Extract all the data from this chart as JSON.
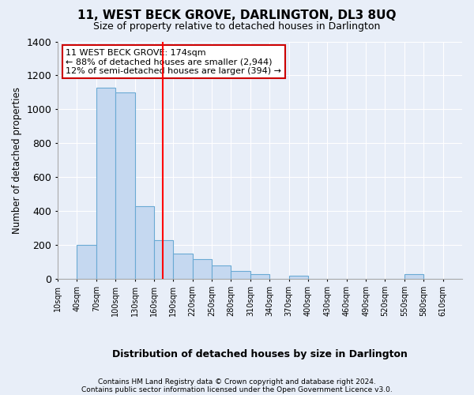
{
  "title": "11, WEST BECK GROVE, DARLINGTON, DL3 8UQ",
  "subtitle": "Size of property relative to detached houses in Darlington",
  "xlabel": "Distribution of detached houses by size in Darlington",
  "ylabel": "Number of detached properties",
  "footnote1": "Contains HM Land Registry data © Crown copyright and database right 2024.",
  "footnote2": "Contains public sector information licensed under the Open Government Licence v3.0.",
  "annotation_line1": "11 WEST BECK GROVE: 174sqm",
  "annotation_line2": "← 88% of detached houses are smaller (2,944)",
  "annotation_line3": "12% of semi-detached houses are larger (394) →",
  "bin_edges": [
    10,
    40,
    70,
    100,
    130,
    160,
    190,
    220,
    250,
    280,
    310,
    340,
    370,
    400,
    430,
    460,
    490,
    520,
    550,
    580,
    610,
    640
  ],
  "values": [
    0,
    200,
    1130,
    1100,
    430,
    230,
    150,
    120,
    80,
    50,
    30,
    0,
    20,
    0,
    0,
    0,
    0,
    0,
    30,
    0,
    0
  ],
  "bar_color": "#c5d8f0",
  "bar_edge_color": "#6aaad4",
  "red_line_x": 174,
  "ylim": [
    0,
    1400
  ],
  "xlim_left": 10,
  "xlim_right": 640,
  "bg_color": "#e8eef8",
  "grid_color": "#ffffff",
  "annotation_box_color": "#ffffff",
  "annotation_box_edge": "#cc0000",
  "tick_labels": [
    "10sqm",
    "40sqm",
    "70sqm",
    "100sqm",
    "130sqm",
    "160sqm",
    "190sqm",
    "220sqm",
    "250sqm",
    "280sqm",
    "310sqm",
    "340sqm",
    "370sqm",
    "400sqm",
    "430sqm",
    "460sqm",
    "490sqm",
    "520sqm",
    "550sqm",
    "580sqm",
    "610sqm"
  ]
}
